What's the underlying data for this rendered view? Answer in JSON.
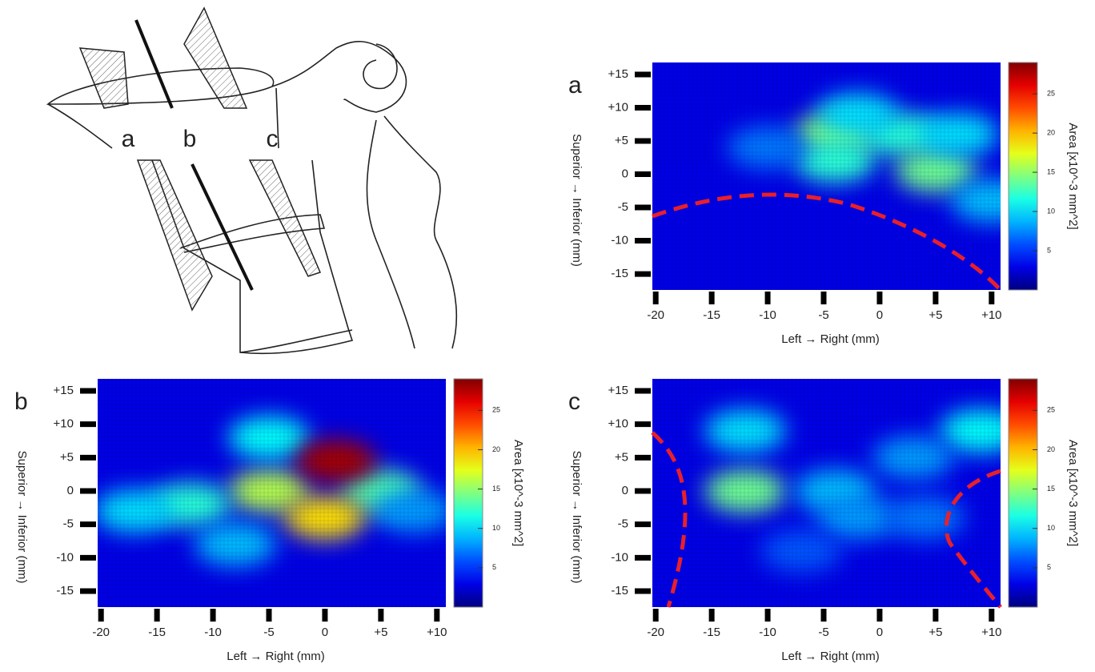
{
  "diagram": {
    "labels": [
      "a",
      "b",
      "c"
    ]
  },
  "chart_data": [
    {
      "type": "heatmap",
      "panel": "a",
      "xlabel": "Left → Right  (mm)",
      "ylabel": "Superior → Inferior   (mm)",
      "colorbar_label": "Area [x10^-3 mm^2]",
      "xlim": [
        -20.3,
        10.8
      ],
      "ylim": [
        -17.4,
        16.8
      ],
      "clim": [
        0,
        29
      ],
      "xticks": [
        -20,
        -15,
        -10,
        -5,
        0,
        {
          "value": 5,
          "label": "+5"
        },
        {
          "value": 10,
          "label": "+10"
        }
      ],
      "yticks": [
        {
          "value": 15,
          "label": "+15"
        },
        {
          "value": 10,
          "label": "+10"
        },
        {
          "value": 5,
          "label": "+5"
        },
        0,
        -5,
        -10,
        -15
      ],
      "cticks": [
        5,
        10,
        15,
        20,
        25
      ],
      "x": [
        -4,
        -4,
        2,
        5,
        7,
        10,
        -10,
        -2
      ],
      "y": [
        6,
        2,
        6,
        0.5,
        6,
        -4,
        4,
        9
      ],
      "values": [
        15,
        12,
        12,
        14,
        10,
        9,
        7,
        10
      ]
    },
    {
      "type": "heatmap",
      "panel": "b",
      "xlabel": "Left → Right     (mm)",
      "ylabel": "Superior → Inferior   (mm)",
      "colorbar_label": "Area [x10^-3 mm^2]",
      "xlim": [
        -20.3,
        10.8
      ],
      "ylim": [
        -17.4,
        16.8
      ],
      "clim": [
        0,
        29
      ],
      "xticks": [
        -20,
        -15,
        -10,
        -5,
        0,
        {
          "value": 5,
          "label": "+5"
        },
        {
          "value": 10,
          "label": "+10"
        }
      ],
      "yticks": [
        {
          "value": 15,
          "label": "+15"
        },
        {
          "value": 10,
          "label": "+10"
        },
        {
          "value": 5,
          "label": "+5"
        },
        0,
        -5,
        -10,
        -15
      ],
      "cticks": [
        5,
        10,
        15,
        20,
        25
      ],
      "x": [
        -5,
        -12,
        -17,
        5,
        -5,
        8,
        -8,
        0,
        1
      ],
      "y": [
        0,
        -2,
        -3,
        0,
        8,
        -3,
        -8,
        -4,
        4.5
      ],
      "values": [
        16,
        12,
        10,
        13,
        11,
        8,
        9,
        19,
        28
      ]
    },
    {
      "type": "heatmap",
      "panel": "c",
      "xlabel": "Left → Right  (mm)",
      "ylabel": "Superior → Inferior   (mm)",
      "colorbar_label": "Area [x10^-3 mm^2]",
      "xlim": [
        -20.3,
        10.8
      ],
      "ylim": [
        -17.4,
        16.8
      ],
      "clim": [
        0,
        29
      ],
      "xticks": [
        -20,
        -15,
        -10,
        -5,
        0,
        {
          "value": 5,
          "label": "+5"
        },
        {
          "value": 10,
          "label": "+10"
        }
      ],
      "yticks": [
        {
          "value": 15,
          "label": "+15"
        },
        {
          "value": 10,
          "label": "+10"
        },
        {
          "value": 5,
          "label": "+5"
        },
        0,
        -5,
        -10,
        -15
      ],
      "cticks": [
        5,
        10,
        15,
        20,
        25
      ],
      "x": [
        -12,
        -12,
        -4,
        -2,
        4,
        9,
        3,
        -7
      ],
      "y": [
        0,
        9,
        0,
        -4,
        -4,
        9,
        5,
        -9
      ],
      "values": [
        14,
        10,
        9,
        8,
        7,
        11,
        8,
        6
      ]
    }
  ]
}
